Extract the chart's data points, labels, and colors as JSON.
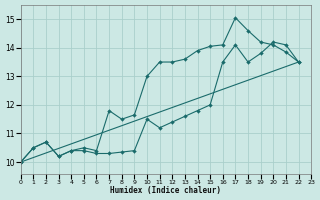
{
  "background_color": "#cce8e4",
  "grid_color": "#aacfcb",
  "line_color": "#1a6b6b",
  "xlabel": "Humidex (Indice chaleur)",
  "xlim": [
    0,
    23
  ],
  "ylim": [
    9.6,
    15.5
  ],
  "yticks": [
    10,
    11,
    12,
    13,
    14,
    15
  ],
  "xticks": [
    0,
    1,
    2,
    3,
    4,
    5,
    6,
    7,
    8,
    9,
    10,
    11,
    12,
    13,
    14,
    15,
    16,
    17,
    18,
    19,
    20,
    21,
    22,
    23
  ],
  "line1_x": [
    0,
    1,
    2,
    3,
    4,
    5,
    6,
    7,
    8,
    9,
    10,
    11,
    12,
    13,
    14,
    15,
    16,
    17,
    18,
    19,
    20,
    21,
    22
  ],
  "line1_y": [
    10.0,
    10.5,
    10.7,
    10.2,
    10.4,
    10.5,
    10.4,
    11.8,
    11.5,
    11.65,
    13.0,
    13.5,
    13.5,
    13.6,
    13.9,
    14.05,
    14.1,
    15.05,
    14.6,
    14.2,
    14.1,
    13.85,
    13.5
  ],
  "line2_x": [
    0,
    1,
    2,
    3,
    4,
    5,
    6,
    7,
    8,
    9,
    10,
    11,
    12,
    13,
    14,
    15,
    16,
    17,
    18,
    19,
    20,
    21,
    22
  ],
  "line2_y": [
    10.0,
    10.5,
    10.7,
    10.2,
    10.4,
    10.4,
    10.3,
    10.3,
    10.35,
    10.4,
    11.5,
    11.2,
    11.4,
    11.6,
    11.8,
    12.0,
    13.5,
    14.1,
    13.5,
    13.8,
    14.2,
    14.1,
    13.5
  ],
  "line3_x": [
    0,
    22
  ],
  "line3_y": [
    10.0,
    13.5
  ]
}
